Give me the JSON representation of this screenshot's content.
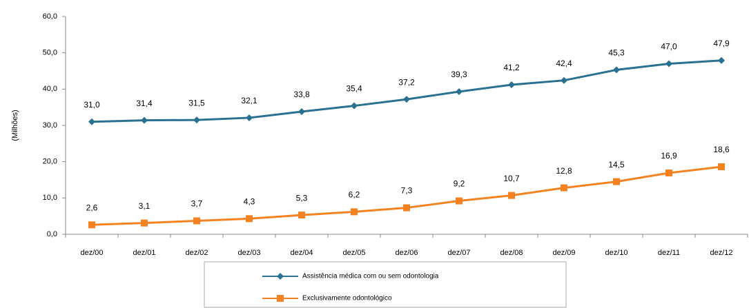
{
  "chart_data": {
    "type": "line",
    "ylabel": "(Milhões)",
    "categories": [
      "dez/00",
      "dez/01",
      "dez/02",
      "dez/03",
      "dez/04",
      "dez/05",
      "dez/06",
      "dez/07",
      "dez/08",
      "dez/09",
      "dez/10",
      "dez/11",
      "dez/12"
    ],
    "series": [
      {
        "name": "Assistência médica com ou sem odontologia",
        "color": "#2a7090",
        "marker": "diamond",
        "values": [
          31.0,
          31.4,
          31.5,
          32.1,
          33.8,
          35.4,
          37.2,
          39.3,
          41.2,
          42.4,
          45.3,
          47.0,
          47.9
        ],
        "value_labels": [
          "31,0",
          "31,4",
          "31,5",
          "32,1",
          "33,8",
          "35,4",
          "37,2",
          "39,3",
          "41,2",
          "42,4",
          "45,3",
          "47,0",
          "47,9"
        ]
      },
      {
        "name": "Exclusivamente odontológico",
        "color": "#f58220",
        "marker": "square",
        "values": [
          2.6,
          3.1,
          3.7,
          4.3,
          5.3,
          6.2,
          7.3,
          9.2,
          10.7,
          12.8,
          14.5,
          16.9,
          18.6
        ],
        "value_labels": [
          "2,6",
          "3,1",
          "3,7",
          "4,3",
          "5,3",
          "6,2",
          "7,3",
          "9,2",
          "10,7",
          "12,8",
          "14,5",
          "16,9",
          "18,6"
        ]
      }
    ],
    "ylim": [
      0,
      60
    ],
    "yticks": [
      {
        "value": 0,
        "label": "0,0"
      },
      {
        "value": 10,
        "label": "10,0"
      },
      {
        "value": 20,
        "label": "20,0"
      },
      {
        "value": 30,
        "label": "30,0"
      },
      {
        "value": 40,
        "label": "40,0"
      },
      {
        "value": 50,
        "label": "50,0"
      },
      {
        "value": 60,
        "label": "60,0"
      }
    ],
    "grid": false,
    "legend": "bottom"
  }
}
